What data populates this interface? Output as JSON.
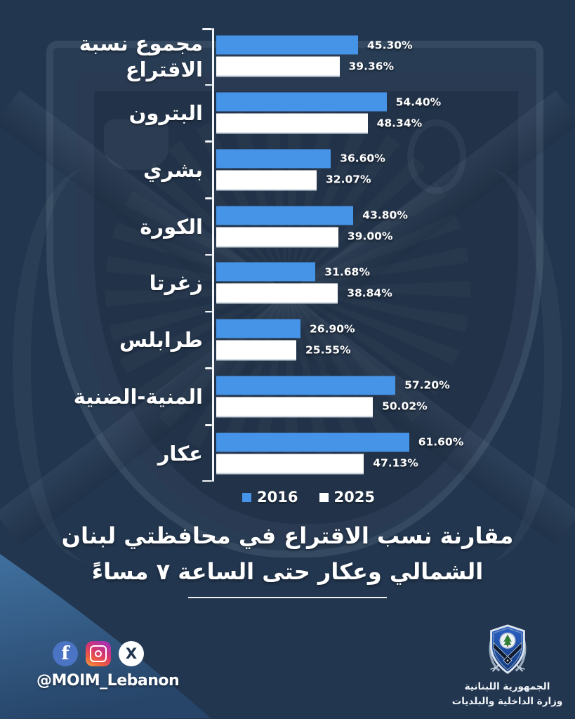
{
  "colors": {
    "background": "#22364F",
    "bar_2016": "#4694E8",
    "bar_2025": "#FFFFFF",
    "axis": "#F2F5F8",
    "accent_blob_top": "#40709F",
    "accent_blob_bottom": "#274569",
    "facebook_blue": "#4C74C4"
  },
  "chart_data": {
    "type": "bar",
    "orientation": "horizontal",
    "categories": [
      "مجموع نسبة الاقتراع",
      "البترون",
      "بشري",
      "الكورة",
      "زغرتا",
      "طرابلس",
      "المنية-الضنية",
      "عكار"
    ],
    "series": [
      {
        "name": "2016",
        "color": "#4694E8",
        "values": [
          45.3,
          54.4,
          36.6,
          43.8,
          31.68,
          26.9,
          57.2,
          61.6
        ]
      },
      {
        "name": "2025",
        "color": "#FFFFFF",
        "values": [
          39.36,
          48.34,
          32.07,
          39.0,
          38.84,
          25.55,
          50.02,
          47.13
        ]
      }
    ],
    "value_labels": [
      [
        "45.30%",
        "39.36%"
      ],
      [
        "54.40%",
        "48.34%"
      ],
      [
        "36.60%",
        "32.07%"
      ],
      [
        "43.80%",
        "39.00%"
      ],
      [
        "31.68%",
        "38.84%"
      ],
      [
        "26.90%",
        "25.55%"
      ],
      [
        "57.20%",
        "50.02%"
      ],
      [
        "61.60%",
        "47.13%"
      ]
    ],
    "xlim": [
      0,
      65
    ],
    "grid": false,
    "legend_position": "bottom",
    "title": "مقارنة نسب الاقتراع في محافظتي لبنان الشمالي وعكار حتى الساعة ٧ مساءً"
  },
  "title": {
    "line1": "مقارنة نسب الاقتراع في محافظتي لبنان",
    "line2": "الشمالي وعكار حتى الساعة ٧ مساءً"
  },
  "footer": {
    "handle": "@MOIM_Lebanon"
  },
  "social": {
    "facebook_glyph": "f",
    "x_glyph": "X",
    "icons": [
      "facebook-icon",
      "instagram-icon",
      "x-icon"
    ]
  },
  "ministry": {
    "line1": "الجمهورية اللبنانية",
    "line2": "وزارة الداخلية والبلديات"
  }
}
